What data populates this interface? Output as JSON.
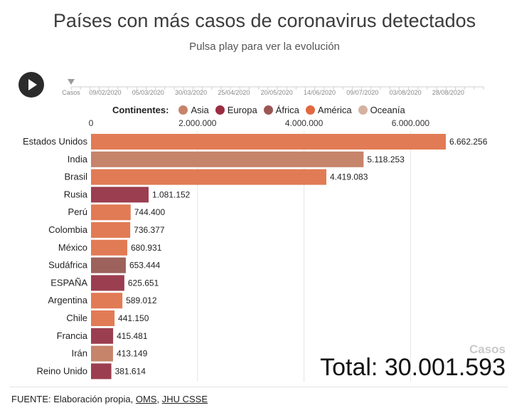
{
  "title": "Países con más casos de coronavirus detectados",
  "subtitle": "Pulsa play para ver la evolución",
  "play": {
    "icon": "play-icon"
  },
  "timeline": {
    "label": "Casos",
    "dates": [
      "09/02/2020",
      "05/03/2020",
      "30/03/2020",
      "25/04/2020",
      "20/05/2020",
      "14/06/2020",
      "09/07/2020",
      "03/08/2020",
      "28/08/2020"
    ]
  },
  "legend": {
    "title": "Continentes:",
    "items": [
      {
        "name": "Asia",
        "color": "#c6846a"
      },
      {
        "name": "Europa",
        "color": "#9b2d43"
      },
      {
        "name": "África",
        "color": "#9c5654"
      },
      {
        "name": "América",
        "color": "#e2683f"
      },
      {
        "name": "Oceanía",
        "color": "#d5b1a0"
      }
    ]
  },
  "chart_data": {
    "type": "bar",
    "orientation": "horizontal",
    "xlim": [
      0,
      7000000
    ],
    "xticks": [
      0,
      2000000,
      4000000,
      6000000
    ],
    "xtick_labels": [
      "0",
      "2.000.000",
      "4.000.000",
      "6.000.000"
    ],
    "grid": true,
    "categories": [
      "Estados Unidos",
      "India",
      "Brasil",
      "Rusia",
      "Perú",
      "Colombia",
      "México",
      "Sudáfrica",
      "ESPAÑA",
      "Argentina",
      "Chile",
      "Francia",
      "Irán",
      "Reino Unido"
    ],
    "values": [
      6662256,
      5118253,
      4419083,
      1081152,
      744400,
      736377,
      680931,
      653444,
      625651,
      589012,
      441150,
      415481,
      413149,
      381614
    ],
    "value_labels": [
      "6.662.256",
      "5.118.253",
      "4.419.083",
      "1.081.152",
      "744.400",
      "736.377",
      "680.931",
      "653.444",
      "625.651",
      "589.012",
      "441.150",
      "415.481",
      "413.149",
      "381.614"
    ],
    "colors": [
      "#e17b55",
      "#c6846a",
      "#e17b55",
      "#9b3e50",
      "#e17b55",
      "#e17b55",
      "#e17b55",
      "#9c625b",
      "#9b3e50",
      "#e17b55",
      "#e17b55",
      "#9b3e50",
      "#c6846a",
      "#9b3e50"
    ]
  },
  "total": {
    "casos_label": "Casos",
    "text": "Total: 30.001.593"
  },
  "footer": {
    "prefix": "FUENTE: Elaboración propia, ",
    "link1": "OMS",
    "sep": ", ",
    "link2": "JHU CSSE"
  }
}
